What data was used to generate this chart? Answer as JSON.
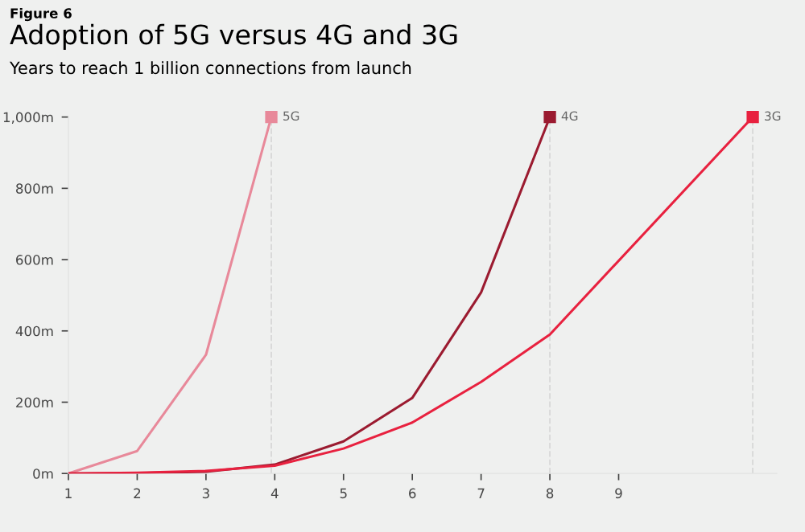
{
  "chart_data": {
    "type": "line",
    "title": "Adoption of 5G versus 4G and 3G",
    "subtitle": "Years to reach 1 billion connections from launch",
    "annotations": [
      "Figure 6"
    ],
    "series": [
      {
        "name": "5G",
        "color": "#e8899a",
        "x": [
          1,
          2,
          3,
          3.95
        ],
        "values": [
          0,
          63,
          333,
          1000
        ]
      },
      {
        "name": "4G",
        "color": "#9b1b30",
        "x": [
          1,
          2,
          3,
          4,
          5,
          6,
          7,
          8
        ],
        "values": [
          0,
          1,
          5,
          25,
          90,
          212,
          508,
          1000
        ]
      },
      {
        "name": "3G",
        "color": "#e8213f",
        "x": [
          1,
          2,
          3,
          4,
          5,
          6,
          7,
          8,
          10.95
        ],
        "values": [
          0,
          2,
          7,
          22,
          70,
          143,
          257,
          390,
          1000
        ]
      }
    ],
    "ref_lines": [
      {
        "axis": "x",
        "value": 3.95,
        "color": "#d9d9d9",
        "line_style": "dashed"
      },
      {
        "axis": "x",
        "value": 8,
        "color": "#d9d9d9",
        "line_style": "dashed"
      },
      {
        "axis": "x",
        "value": 10.95,
        "color": "#d9d9d9",
        "line_style": "dashed"
      }
    ],
    "xlim": [
      1,
      11.3
    ],
    "xticks": [
      1,
      2,
      3,
      4,
      5,
      6,
      7,
      8,
      9
    ],
    "ylim": [
      0,
      1000
    ],
    "yticks": [
      {
        "value": 0,
        "label": "0m"
      },
      {
        "value": 200,
        "label": "200m"
      },
      {
        "value": 400,
        "label": "400m"
      },
      {
        "value": 600,
        "label": "600m"
      },
      {
        "value": 800,
        "label": "800m"
      },
      {
        "value": 1000,
        "label": "1,000m"
      }
    ],
    "grid": false,
    "legend": false,
    "line_style": "solid"
  }
}
